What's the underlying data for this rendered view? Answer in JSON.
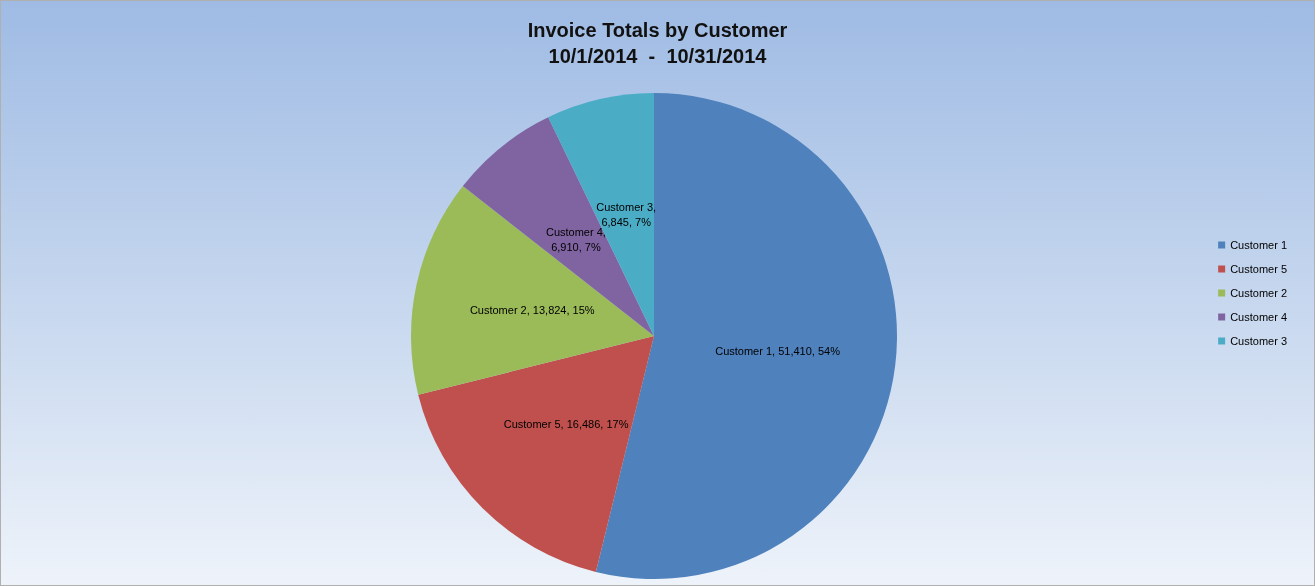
{
  "chart_data": {
    "type": "pie",
    "title": "Invoice Totals by Customer",
    "subtitle": "10/1/2014  -  10/31/2014",
    "categories": [
      "Customer 1",
      "Customer 5",
      "Customer 2",
      "Customer 4",
      "Customer 3"
    ],
    "values": [
      51410,
      16486,
      13824,
      6910,
      6845
    ],
    "colors": [
      "#4f81bd",
      "#c0504d",
      "#9bbb59",
      "#8064a2",
      "#4bacc6"
    ],
    "value_labels": [
      "Customer 1, 51,410, 54%",
      "Customer 5, 16,486, 17%",
      "Customer 2, 13,824, 15%",
      "Customer 4, 6,910, 7%",
      "Customer 3, 6,845, 7%"
    ],
    "legend": "right"
  }
}
